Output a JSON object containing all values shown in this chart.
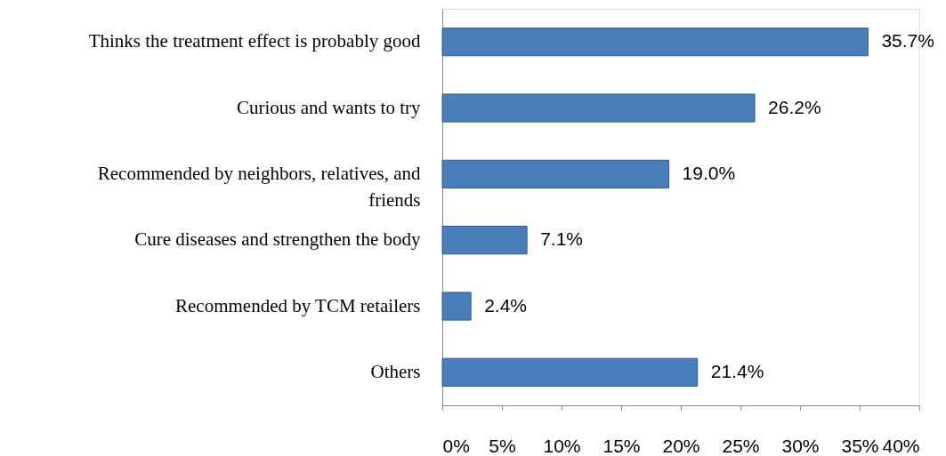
{
  "chart_data": {
    "type": "bar",
    "orientation": "horizontal",
    "categories": [
      "Thinks the treatment effect is probably good",
      "Curious and wants to try",
      "Recommended by neighbors, relatives, and friends",
      "Cure diseases and strengthen the body",
      "Recommended by TCM retailers",
      "Others"
    ],
    "values": [
      35.7,
      26.2,
      19.0,
      7.1,
      2.4,
      21.4
    ],
    "value_labels": [
      "35.7%",
      "26.2%",
      "19.0%",
      "7.1%",
      "2.4%",
      "21.4%"
    ],
    "color": "#4a7ebb",
    "xlim": [
      0,
      40
    ],
    "xticks": [
      {
        "value": 0,
        "label": "0%"
      },
      {
        "value": 5,
        "label": "5%"
      },
      {
        "value": 10,
        "label": "10%"
      },
      {
        "value": 15,
        "label": "15%"
      },
      {
        "value": 20,
        "label": "20%"
      },
      {
        "value": 25,
        "label": "25%"
      },
      {
        "value": 30,
        "label": "30%"
      },
      {
        "value": 35,
        "label": "35%"
      },
      {
        "value": 40,
        "label": "40%"
      }
    ]
  }
}
